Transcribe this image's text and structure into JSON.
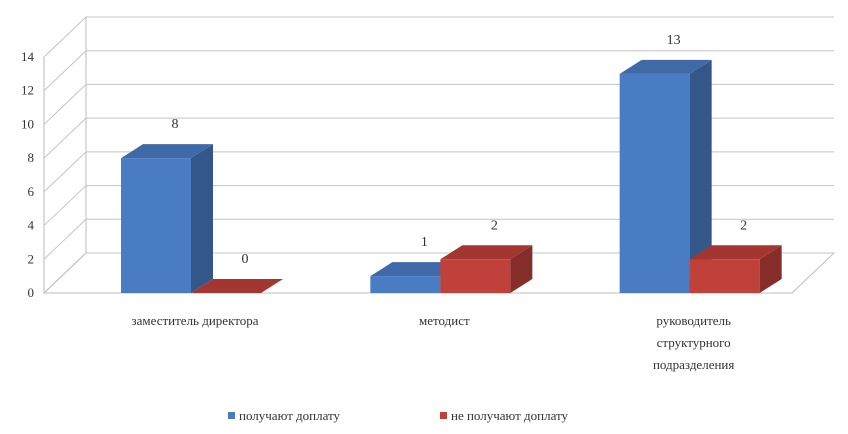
{
  "chart_data": {
    "type": "bar",
    "categories": [
      [
        "заместитель директора"
      ],
      [
        "методист"
      ],
      [
        "руководитель",
        "структурного",
        "подразделения"
      ]
    ],
    "series": [
      {
        "name": "получают доплату",
        "values": [
          8,
          1,
          13
        ],
        "color": "#4a7cc4"
      },
      {
        "name": "не получают доплату",
        "values": [
          0,
          2,
          2
        ],
        "color": "#c0403a"
      }
    ],
    "ylim": [
      0,
      14
    ],
    "yticks": [
      0,
      2,
      4,
      6,
      8,
      10,
      12,
      14
    ],
    "grid": true,
    "legend": "bottom",
    "style": "3d-bar"
  }
}
